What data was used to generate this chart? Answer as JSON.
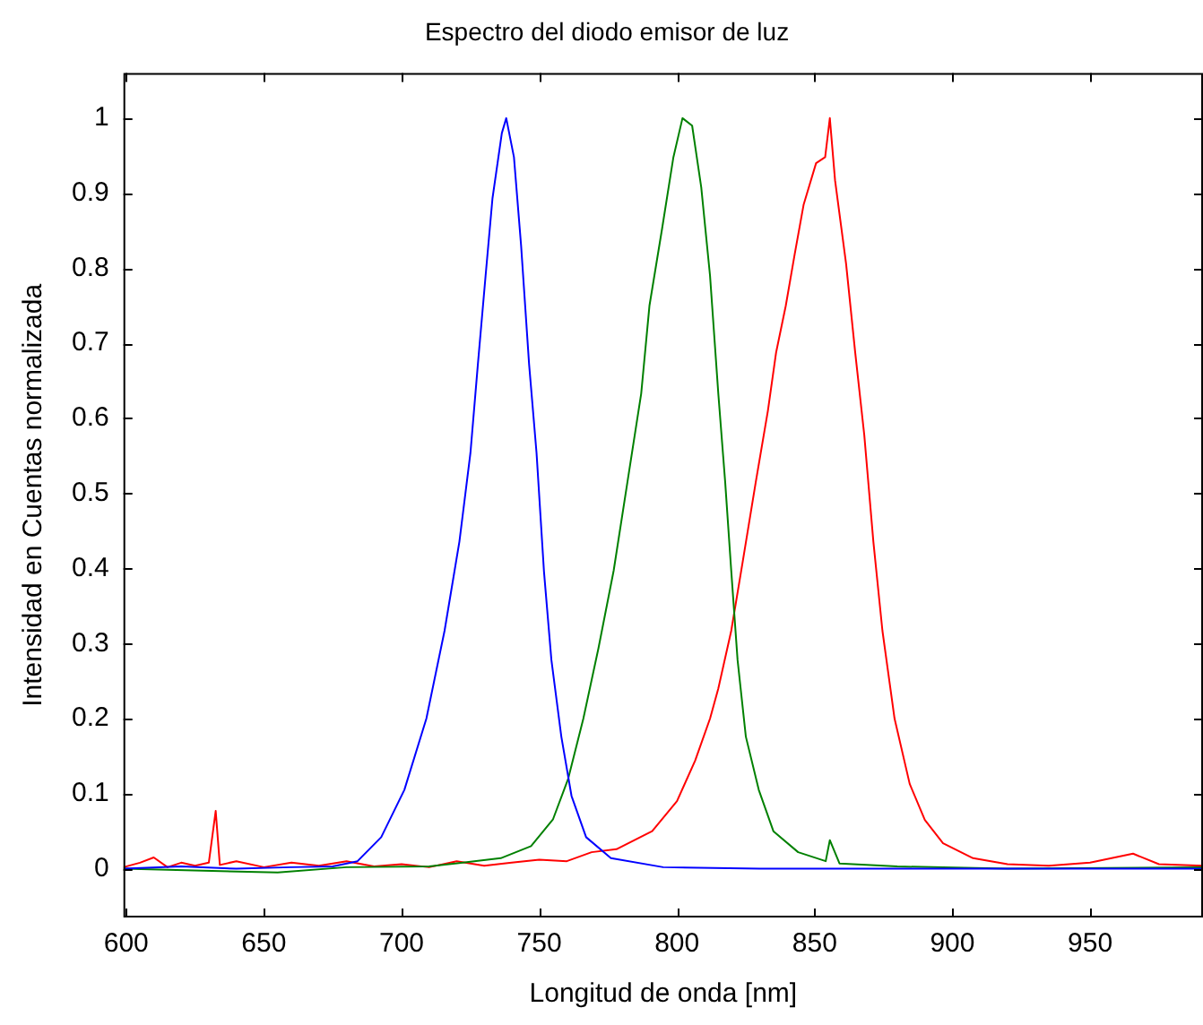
{
  "chart_data": {
    "type": "line",
    "title": "Espectro del diodo emisor de luz",
    "xlabel": "Longitud de onda [nm]",
    "ylabel": "Intensidad en Cuentas normalizada",
    "xlim": [
      599,
      991
    ],
    "xticks": [
      600,
      650,
      700,
      750,
      800,
      850,
      900,
      950
    ],
    "ylim": [
      -0.065,
      1.06
    ],
    "yticks": [
      0,
      0.1,
      0.2,
      0.3,
      0.4,
      0.5,
      0.6,
      0.7,
      0.8,
      0.9,
      1
    ],
    "grid": false,
    "legend": false,
    "marker": "none",
    "line_style": "solid",
    "series": [
      {
        "color": "#0000ff",
        "x": [
          599,
          620,
          640,
          660,
          675,
          684,
          692.6,
          701,
          709,
          715.6,
          721,
          725,
          727.7,
          730.5,
          733,
          736.4,
          738,
          740.8,
          743.4,
          746.3,
          749,
          751.7,
          754.4,
          758,
          761.7,
          767,
          776,
          795,
          830,
          900,
          991
        ],
        "values": [
          0,
          0.003,
          0,
          0.002,
          0.003,
          0.01,
          0.042,
          0.105,
          0.2,
          0.317,
          0.436,
          0.554,
          0.672,
          0.79,
          0.893,
          0.98,
          1.0,
          0.948,
          0.83,
          0.672,
          0.554,
          0.396,
          0.278,
          0.176,
          0.097,
          0.042,
          0.014,
          0.002,
          0,
          0,
          0
        ]
      },
      {
        "color": "#008000",
        "x": [
          599,
          655,
          680,
          710,
          736,
          747,
          755,
          760.5,
          766,
          771.5,
          777,
          782,
          787,
          790,
          794.6,
          798.7,
          802,
          805.5,
          808.8,
          812,
          815,
          817.5,
          819.7,
          822,
          825,
          829.7,
          835,
          844,
          854,
          855.5,
          859,
          880,
          920,
          991
        ],
        "values": [
          0,
          -0.005,
          0.002,
          0.003,
          0.014,
          0.03,
          0.066,
          0.12,
          0.2,
          0.294,
          0.397,
          0.515,
          0.633,
          0.75,
          0.853,
          0.948,
          1.0,
          0.99,
          0.908,
          0.79,
          0.633,
          0.515,
          0.397,
          0.278,
          0.176,
          0.105,
          0.05,
          0.022,
          0.01,
          0.038,
          0.007,
          0.003,
          0,
          0.002
        ]
      },
      {
        "color": "#ff0000",
        "x": [
          599,
          605,
          610,
          615,
          620,
          625,
          630,
          632.5,
          634,
          640,
          650,
          660,
          670,
          680,
          690,
          700,
          710,
          720,
          730,
          740,
          750,
          760,
          769,
          778,
          791,
          800,
          806.6,
          812,
          815,
          819.7,
          824,
          828.6,
          833,
          836,
          839.5,
          842.8,
          846,
          850.5,
          853.8,
          855.5,
          857.4,
          861.4,
          864.7,
          868,
          871.3,
          874.6,
          879,
          884.5,
          890,
          896.6,
          907.5,
          920,
          935,
          950,
          965.6,
          975,
          991
        ],
        "values": [
          0.002,
          0.008,
          0.015,
          0.002,
          0.008,
          0.004,
          0.008,
          0.077,
          0.005,
          0.01,
          0.002,
          0.008,
          0.004,
          0.01,
          0.003,
          0.006,
          0.002,
          0.01,
          0.004,
          0.008,
          0.012,
          0.01,
          0.022,
          0.026,
          0.05,
          0.09,
          0.144,
          0.2,
          0.24,
          0.317,
          0.412,
          0.515,
          0.61,
          0.688,
          0.75,
          0.82,
          0.885,
          0.94,
          0.948,
          1.0,
          0.917,
          0.806,
          0.688,
          0.578,
          0.436,
          0.317,
          0.2,
          0.113,
          0.065,
          0.034,
          0.014,
          0.006,
          0.004,
          0.008,
          0.02,
          0.006,
          0.004
        ]
      }
    ]
  }
}
